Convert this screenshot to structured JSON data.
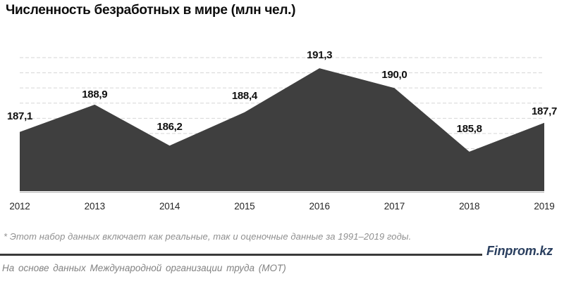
{
  "header": {
    "title": "Численность безработных в мире (млн чел.)"
  },
  "chart_data": {
    "type": "area",
    "title": "Численность безработных в мире (млн чел.)",
    "categories": [
      "2012",
      "2013",
      "2014",
      "2015",
      "2016",
      "2017",
      "2018",
      "2019"
    ],
    "values": [
      187.1,
      188.9,
      186.2,
      188.4,
      191.3,
      190.0,
      185.8,
      187.7
    ],
    "point_labels": [
      "187,1",
      "188,9",
      "186,2",
      "188,4",
      "191,3",
      "190,0",
      "185,8",
      "187,7"
    ],
    "xlabel": "",
    "ylabel": "",
    "ylim": [
      183.2,
      192
    ],
    "gridline_step": 1,
    "grid": true,
    "legend": false,
    "fill_color": "#3f3f3f",
    "gridline_color": "#d6d6d6",
    "axis_line_color": "#b0b0b0",
    "label_color": "#101010"
  },
  "footer": {
    "footnote": "* Этот набор данных включает как реальные, так и оценочные данные за 1991–2019 годы.",
    "source": "На основе данных Международной организации труда (МОТ)",
    "brand": "Finprom.kz",
    "brand_color": "#2a3f5f"
  }
}
